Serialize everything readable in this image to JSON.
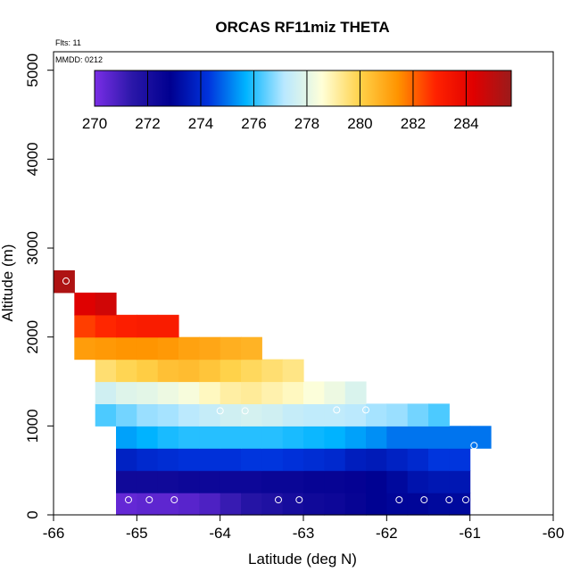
{
  "chart_data": {
    "type": "heatmap",
    "title": "ORCAS RF11miz THETA",
    "annotations": {
      "flights": "Flts: 11",
      "date": "MMDD: 0212"
    },
    "xlabel": "Latitude (deg N)",
    "ylabel": "Altitude (m)",
    "xlim": [
      -66,
      -60
    ],
    "ylim": [
      0,
      5200
    ],
    "x_ticks": [
      -66,
      -65,
      -64,
      -63,
      -62,
      -61,
      -60
    ],
    "x_tick_labels": [
      "-66",
      "-65",
      "-64",
      "-63",
      "-62",
      "-61",
      "-60"
    ],
    "y_ticks": [
      0,
      1000,
      2000,
      3000,
      4000,
      5000
    ],
    "y_tick_labels": [
      "0",
      "1000",
      "2000",
      "3000",
      "4000",
      "5000"
    ],
    "colorbar": {
      "range": [
        270,
        285.7
      ],
      "tick_values": [
        270,
        272,
        274,
        276,
        278,
        280,
        282,
        284
      ],
      "tick_labels": [
        "270",
        "272",
        "274",
        "276",
        "278",
        "280",
        "282",
        "284"
      ],
      "gradient": [
        "#7a2ee6",
        "#2a17a8",
        "#000090",
        "#0033dd",
        "#00b4ff",
        "#b8e8ff",
        "#ffffd8",
        "#ffd24a",
        "#ff9400",
        "#ff2200",
        "#e00000",
        "#9b1b1b"
      ]
    },
    "cell_width_deg": 0.25,
    "cell_height_m": 250,
    "rows": [
      {
        "alt_bottom": 0,
        "lat_start": -65.25,
        "values": [
          270.4,
          270.5,
          270.5,
          270.6,
          270.8,
          271.2,
          271.6,
          271.8,
          272.1,
          272.3,
          272.4,
          272.6,
          272.9,
          273.0,
          273.0,
          273.1,
          273.1
        ]
      },
      {
        "alt_bottom": 250,
        "lat_start": -65.25,
        "values": [
          272.3,
          272.3,
          272.3,
          272.4,
          272.4,
          272.4,
          272.4,
          272.5,
          272.5,
          272.6,
          272.6,
          272.7,
          272.9,
          273.1,
          273.4,
          273.5,
          273.5
        ]
      },
      {
        "alt_bottom": 500,
        "lat_start": -65.25,
        "values": [
          273.8,
          274.0,
          274.1,
          274.2,
          274.2,
          274.2,
          274.3,
          274.3,
          274.2,
          274.1,
          274.0,
          273.7,
          273.6,
          273.8,
          274.0,
          274.3,
          274.3
        ]
      },
      {
        "alt_bottom": 750,
        "lat_start": -65.25,
        "values": [
          275.5,
          275.7,
          275.9,
          276.0,
          276.0,
          276.0,
          276.0,
          276.0,
          275.9,
          275.8,
          275.7,
          275.5,
          275.3,
          275.0,
          275.0,
          275.0,
          275.0,
          275.0
        ]
      },
      {
        "alt_bottom": 1000,
        "lat_start": -65.5,
        "values": [
          276.3,
          276.6,
          276.9,
          277.0,
          277.2,
          277.4,
          277.6,
          277.7,
          277.6,
          277.4,
          277.3,
          277.3,
          277.2,
          277.0,
          276.9,
          276.6,
          276.3
        ]
      },
      {
        "alt_bottom": 1250,
        "lat_start": -65.5,
        "values": [
          277.6,
          277.9,
          278.0,
          278.2,
          278.4,
          278.8,
          279.1,
          279.2,
          279.0,
          278.8,
          278.5,
          278.2,
          277.8
        ]
      },
      {
        "alt_bottom": 1500,
        "lat_start": -65.5,
        "values": [
          279.6,
          279.9,
          280.1,
          280.4,
          280.5,
          280.3,
          280.0,
          279.8,
          279.6,
          279.4
        ]
      },
      {
        "alt_bottom": 1750,
        "lat_start": -65.75,
        "values": [
          281.2,
          281.3,
          281.4,
          281.4,
          281.3,
          281.1,
          281.0,
          280.8,
          280.7
        ]
      },
      {
        "alt_bottom": 2000,
        "lat_start": -65.75,
        "values": [
          282.5,
          282.8,
          283.0,
          283.1,
          283.1
        ]
      },
      {
        "alt_bottom": 2250,
        "lat_start": -65.75,
        "values": [
          284.3,
          284.6
        ]
      },
      {
        "alt_bottom": 2500,
        "lat_start": -66.0,
        "values": [
          285.3
        ]
      }
    ],
    "markers": [
      {
        "lat": -65.1,
        "alt": 170
      },
      {
        "lat": -64.85,
        "alt": 170
      },
      {
        "lat": -64.55,
        "alt": 170
      },
      {
        "lat": -63.3,
        "alt": 170
      },
      {
        "lat": -63.05,
        "alt": 170
      },
      {
        "lat": -61.85,
        "alt": 170
      },
      {
        "lat": -61.55,
        "alt": 170
      },
      {
        "lat": -61.25,
        "alt": 170
      },
      {
        "lat": -61.05,
        "alt": 170
      },
      {
        "lat": -60.95,
        "alt": 780
      },
      {
        "lat": -64.0,
        "alt": 1170
      },
      {
        "lat": -63.7,
        "alt": 1170
      },
      {
        "lat": -62.6,
        "alt": 1180
      },
      {
        "lat": -62.25,
        "alt": 1180
      },
      {
        "lat": -65.85,
        "alt": 2630
      }
    ]
  }
}
